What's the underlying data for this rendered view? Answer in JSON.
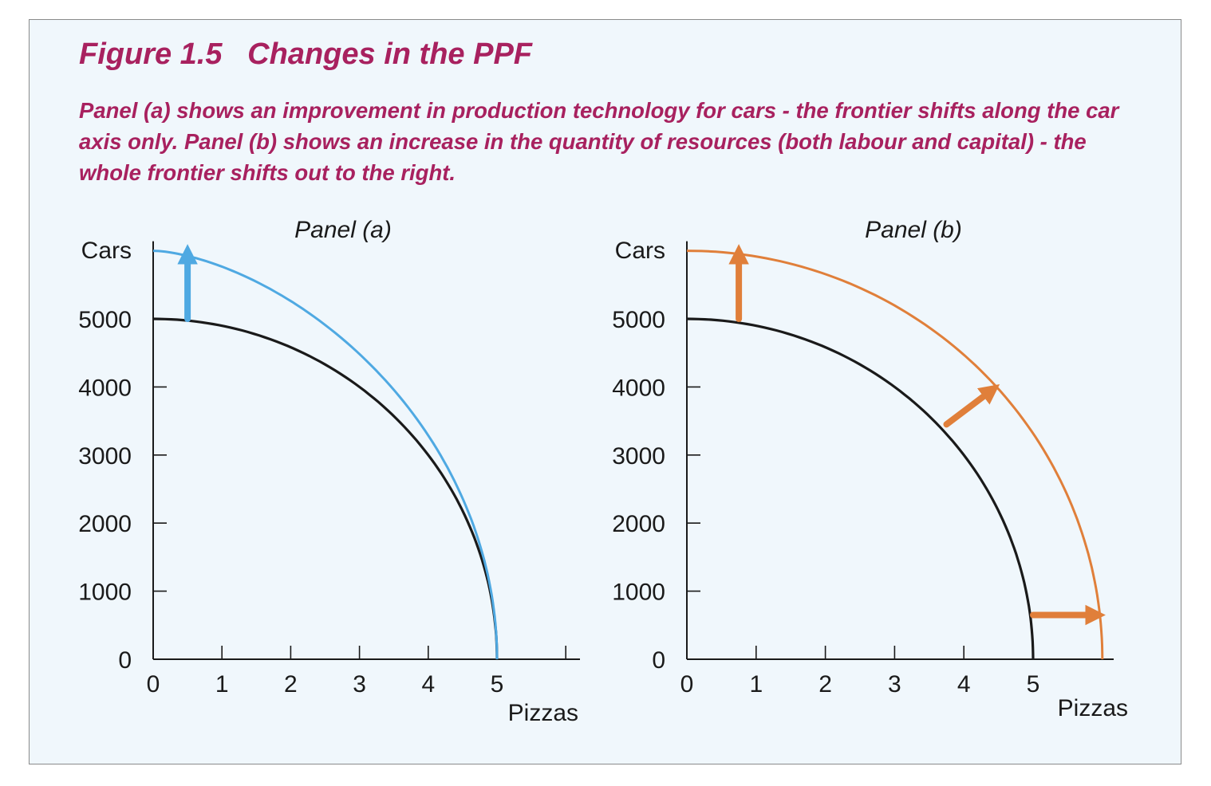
{
  "figure": {
    "title": "Figure 1.5   Changes in the PPF",
    "caption": "Panel (a) shows an improvement in production technology for cars - the frontier shifts along the car axis only. Panel (b) shows an increase in the quantity of resources (both labour and capital) - the whole frontier shifts out to the right."
  },
  "colors": {
    "title": "#a8215f",
    "background": "#f0f7fc",
    "original_frontier": "#1a1a1a",
    "panel_a_shift": "#4fa9e2",
    "panel_b_shift": "#e07f3a"
  },
  "chart_data": [
    {
      "type": "line",
      "title": "Panel  (a)",
      "xlabel": "Pizzas",
      "ylabel": "Cars",
      "xlim": [
        0,
        6
      ],
      "ylim": [
        0,
        6000
      ],
      "x_ticks": [
        "0",
        "1",
        "2",
        "3",
        "4",
        "5"
      ],
      "y_ticks": [
        "0",
        "1000",
        "2000",
        "3000",
        "4000",
        "5000"
      ],
      "series": [
        {
          "role": "original",
          "color": "#1a1a1a",
          "x_intercept": 5,
          "y_intercept": 5000
        },
        {
          "role": "shifted",
          "color": "#4fa9e2",
          "x_intercept": 5,
          "y_intercept": 6000
        }
      ],
      "arrows": [
        {
          "from": [
            0.5,
            5000
          ],
          "to": [
            0.5,
            5950
          ],
          "color": "#4fa9e2"
        }
      ]
    },
    {
      "type": "line",
      "title": "Panel  (b)",
      "xlabel": "Pizzas",
      "ylabel": "Cars",
      "xlim": [
        0,
        6
      ],
      "ylim": [
        0,
        6000
      ],
      "x_ticks": [
        "0",
        "1",
        "2",
        "3",
        "4",
        "5"
      ],
      "y_ticks": [
        "0",
        "1000",
        "2000",
        "3000",
        "4000",
        "5000"
      ],
      "series": [
        {
          "role": "original",
          "color": "#1a1a1a",
          "x_intercept": 5,
          "y_intercept": 5000
        },
        {
          "role": "shifted",
          "color": "#e07f3a",
          "x_intercept": 6,
          "y_intercept": 6000
        }
      ],
      "arrows": [
        {
          "from": [
            0.75,
            5000
          ],
          "to": [
            0.75,
            5950
          ],
          "color": "#e07f3a"
        },
        {
          "from": [
            3.75,
            3450
          ],
          "to": [
            4.4,
            3950
          ],
          "color": "#e07f3a"
        },
        {
          "from": [
            5.0,
            650
          ],
          "to": [
            5.9,
            650
          ],
          "color": "#e07f3a"
        }
      ]
    }
  ]
}
